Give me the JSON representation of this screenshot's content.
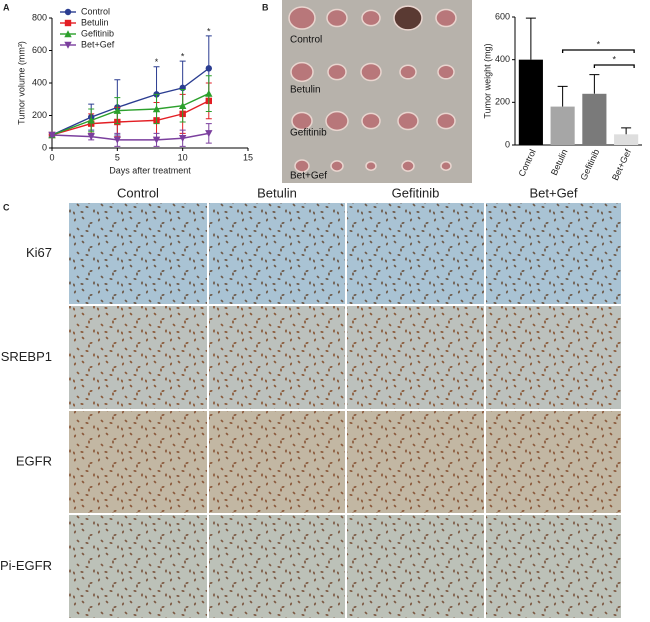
{
  "panel_labels": [
    "A",
    "B",
    "C"
  ],
  "chart_data": [
    {
      "type": "line",
      "xlabel": "Days after treatment",
      "ylabel": "Tumor volume (mm³)",
      "x": [
        0,
        3,
        5,
        8,
        10,
        12
      ],
      "xlim": [
        0,
        15
      ],
      "xticks": [
        0,
        5,
        10,
        15
      ],
      "ylim": [
        0,
        800
      ],
      "yticks": [
        0,
        200,
        400,
        600,
        800
      ],
      "legend": "upper left",
      "series": [
        {
          "name": "Control",
          "color": "#2b3d91",
          "marker": "circle",
          "values": [
            80,
            190,
            250,
            330,
            370,
            490
          ],
          "errors": [
            10,
            80,
            170,
            170,
            165,
            200
          ]
        },
        {
          "name": "Betulin",
          "color": "#e31e24",
          "marker": "square",
          "values": [
            80,
            150,
            160,
            170,
            210,
            290
          ],
          "errors": [
            10,
            60,
            90,
            110,
            120,
            110
          ]
        },
        {
          "name": "Gefitinib",
          "color": "#2ca02c",
          "marker": "triangle",
          "values": [
            80,
            170,
            230,
            240,
            260,
            335
          ],
          "errors": [
            10,
            70,
            80,
            90,
            100,
            110
          ]
        },
        {
          "name": "Bet+Gef",
          "color": "#7b3f9e",
          "marker": "triangle-down",
          "values": [
            80,
            70,
            50,
            50,
            60,
            90
          ],
          "errors": [
            10,
            20,
            40,
            40,
            50,
            60
          ]
        }
      ],
      "annotations": [
        {
          "text": "*",
          "x": 8
        },
        {
          "text": "*",
          "x": 10
        },
        {
          "text": "*",
          "x": 12
        }
      ]
    },
    {
      "type": "bar",
      "ylabel": "Tumor weight (mg)",
      "categories": [
        "Control",
        "Betulin",
        "Gefitinib",
        "Bet+Gef"
      ],
      "values": [
        400,
        180,
        240,
        50
      ],
      "errors": [
        195,
        95,
        90,
        30
      ],
      "colors": [
        "#000000",
        "#a6a6a6",
        "#7a7a7a",
        "#dedede"
      ],
      "ylim": [
        0,
        600
      ],
      "yticks": [
        0,
        200,
        400,
        600
      ],
      "significance": [
        {
          "text": "*",
          "between": [
            1,
            3
          ]
        },
        {
          "text": "*",
          "between": [
            2,
            3
          ]
        }
      ]
    }
  ],
  "photo": {
    "rows": [
      "Control",
      "Betulin",
      "Gefitinib",
      "Bet+Gef"
    ]
  },
  "ihc": {
    "columns": [
      "Control",
      "Betulin",
      "Gefitinib",
      "Bet+Gef"
    ],
    "rows": [
      "Ki67",
      "SREBP1",
      "EGFR",
      "Pi-EGFR"
    ]
  }
}
